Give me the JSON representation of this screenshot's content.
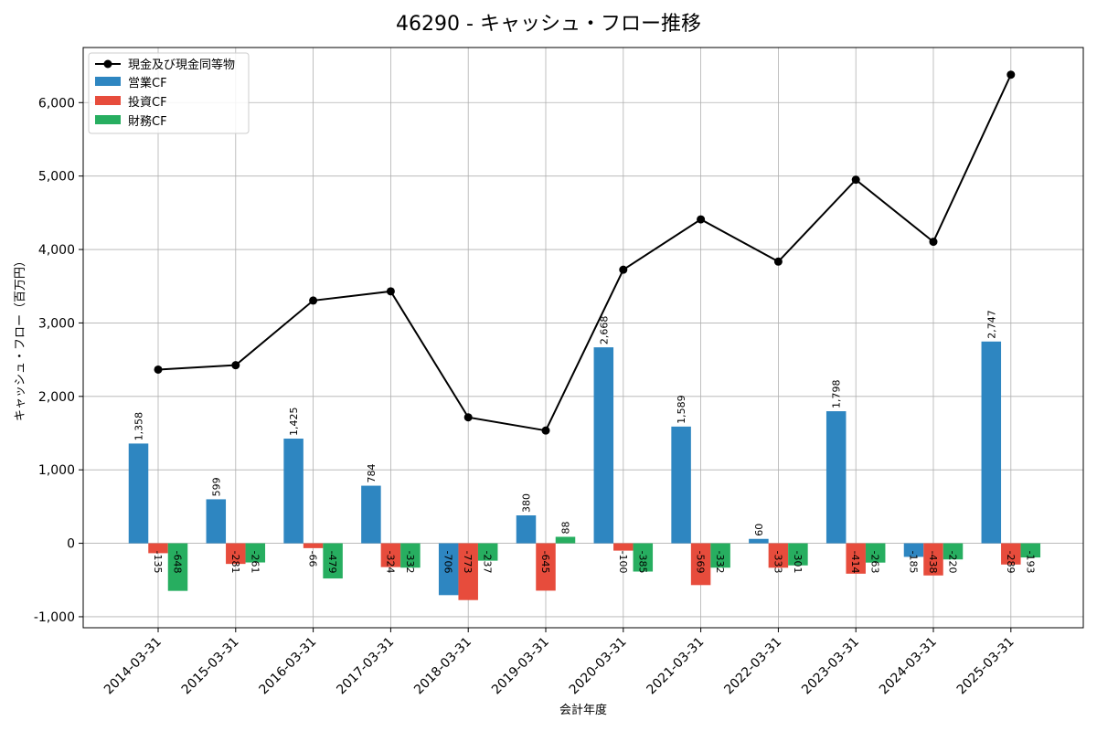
{
  "chart_data": {
    "type": "bar",
    "title": "46290 - キャッシュ・フロー推移",
    "xlabel": "会計年度",
    "ylabel": "キャッシュ・フロー（百万円）",
    "ylim": [
      -1150,
      6750
    ],
    "yticks": [
      -1000,
      0,
      1000,
      2000,
      3000,
      4000,
      5000,
      6000
    ],
    "ytick_labels": [
      "-1,000",
      "0",
      "1,000",
      "2,000",
      "3,000",
      "4,000",
      "5,000",
      "6,000"
    ],
    "grid": true,
    "legend_position": "top-left",
    "categories": [
      "2014-03-31",
      "2015-03-31",
      "2016-03-31",
      "2017-03-31",
      "2018-03-31",
      "2019-03-31",
      "2020-03-31",
      "2021-03-31",
      "2022-03-31",
      "2023-03-31",
      "2024-03-31",
      "2025-03-31"
    ],
    "series": [
      {
        "name": "営業CF",
        "kind": "bar",
        "color": "#2e86c1",
        "values": [
          1358,
          599,
          1425,
          784,
          -706,
          380,
          2668,
          1589,
          60,
          1798,
          -185,
          2747
        ],
        "labels": [
          "1,358",
          "599",
          "1,425",
          "784",
          "-706",
          "380",
          "2,668",
          "1,589",
          "60",
          "1,798",
          "-185",
          "2,747"
        ]
      },
      {
        "name": "投資CF",
        "kind": "bar",
        "color": "#e74c3c",
        "values": [
          -135,
          -281,
          -66,
          -324,
          -773,
          -645,
          -100,
          -569,
          -333,
          -414,
          -438,
          -289
        ],
        "labels": [
          "-135",
          "-281",
          "-66",
          "-324",
          "-773",
          "-645",
          "-100",
          "-569",
          "-333",
          "-414",
          "-438",
          "-289"
        ]
      },
      {
        "name": "財務CF",
        "kind": "bar",
        "color": "#27ae60",
        "values": [
          -648,
          -261,
          -479,
          -332,
          -237,
          88,
          -385,
          -332,
          -301,
          -263,
          -220,
          -193
        ],
        "labels": [
          "-648",
          "-261",
          "-479",
          "-332",
          "-237",
          "88",
          "-385",
          "-332",
          "-301",
          "-263",
          "-220",
          "-193"
        ]
      },
      {
        "name": "現金及び現金同等物",
        "kind": "line",
        "color": "#000000",
        "values": [
          2365,
          2425,
          3305,
          3430,
          1715,
          1535,
          3725,
          4410,
          3835,
          4950,
          4105,
          6380
        ]
      }
    ]
  }
}
